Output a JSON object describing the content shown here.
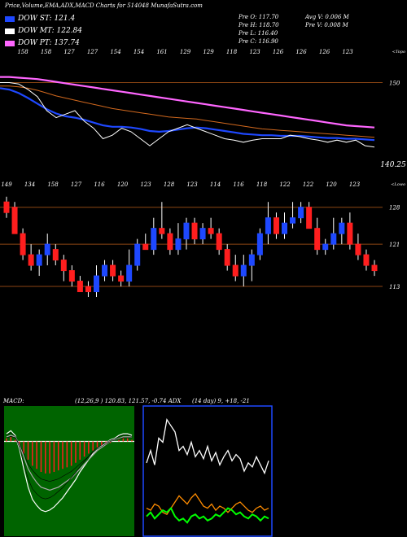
{
  "header": {
    "title": "Price,Volume,EMA,ADX,MACD Charts for 514048 MunafaSutra.com"
  },
  "legend": [
    {
      "label": "DOW ST: 121.4",
      "color": "#1e48ff"
    },
    {
      "label": "DOW MT: 122.84",
      "color": "#ffffff"
    },
    {
      "label": "DOW PT: 137.74",
      "color": "#ff66ff"
    }
  ],
  "ohlc": {
    "open": "Pre   O: 117.70",
    "high": "Pre   H: 118.70",
    "low": "Pre   L: 116.40",
    "close": "Pre   C: 116.90"
  },
  "volume_info": {
    "avg": "Avg V: 0.006   M",
    "pre": "Pre   V: 0.008   M"
  },
  "chart_data": [
    {
      "type": "line",
      "id": "ema-panel",
      "top_labels": [
        "158",
        "158",
        "127",
        "127",
        "154",
        "154",
        "161",
        "129",
        "129",
        "118",
        "123",
        "126",
        "126",
        "126",
        "123"
      ],
      "right_label": "150",
      "bottom_label": "140.25",
      "top_right": "<Topo",
      "ylim": [
        138,
        154
      ],
      "series": [
        {
          "color": "#ffffff",
          "values": [
            150,
            150,
            149.8,
            149,
            148,
            146,
            145,
            145.5,
            146,
            144.5,
            143.5,
            142,
            142.5,
            143.5,
            143,
            142,
            141,
            142,
            143,
            143.5,
            144,
            143.5,
            143,
            142.5,
            142,
            141.8,
            141.5,
            141.8,
            142,
            142,
            142,
            142.5,
            142.3,
            142,
            141.8,
            141.5,
            141.8,
            141.5,
            141.8,
            141,
            140.8
          ]
        },
        {
          "color": "#1e48ff",
          "values": [
            149.2,
            149,
            148.5,
            147.8,
            147,
            146.2,
            145.6,
            145.2,
            145,
            144.7,
            144.3,
            143.9,
            143.7,
            143.7,
            143.6,
            143.4,
            143.1,
            143,
            143.1,
            143.3,
            143.5,
            143.6,
            143.5,
            143.3,
            143.1,
            142.9,
            142.7,
            142.6,
            142.5,
            142.5,
            142.4,
            142.4,
            142.4,
            142.3,
            142.2,
            142.1,
            142.1,
            142,
            142,
            141.9,
            141.8
          ]
        },
        {
          "color": "#ff66ff",
          "values": [
            150.8,
            150.8,
            150.7,
            150.6,
            150.5,
            150.3,
            150.1,
            149.9,
            149.7,
            149.5,
            149.3,
            149.1,
            148.9,
            148.7,
            148.5,
            148.3,
            148.1,
            147.9,
            147.7,
            147.5,
            147.3,
            147.1,
            146.9,
            146.7,
            146.5,
            146.3,
            146.1,
            145.9,
            145.7,
            145.5,
            145.3,
            145.1,
            144.9,
            144.7,
            144.5,
            144.3,
            144.1,
            143.9,
            143.8,
            143.7,
            143.6
          ]
        },
        {
          "color": "#d2691e",
          "values": [
            149.5,
            149.5,
            149.4,
            149.2,
            148.9,
            148.5,
            148.1,
            147.8,
            147.5,
            147.2,
            146.9,
            146.6,
            146.3,
            146.1,
            145.9,
            145.7,
            145.5,
            145.3,
            145.1,
            145,
            144.9,
            144.8,
            144.6,
            144.4,
            144.2,
            144,
            143.8,
            143.6,
            143.4,
            143.3,
            143.2,
            143.1,
            143,
            142.9,
            142.8,
            142.7,
            142.6,
            142.5,
            142.4,
            142.3,
            142.2
          ]
        }
      ]
    },
    {
      "type": "candlestick",
      "id": "price-panel",
      "top_labels": [
        "149",
        "134",
        "158",
        "127",
        "116",
        "120",
        "123",
        "128",
        "123",
        "114",
        "116",
        "118",
        "122",
        "122",
        "120",
        "123"
      ],
      "right_labels": [
        "128",
        "121",
        "113"
      ],
      "top_right": "<Lowo",
      "ylim": [
        109,
        131.5
      ],
      "candles": [
        [
          129,
          127,
          130,
          126
        ],
        [
          128,
          123,
          129,
          123
        ],
        [
          123,
          119,
          124,
          118
        ],
        [
          119,
          117,
          121,
          116
        ],
        [
          117,
          119,
          120,
          115
        ],
        [
          119,
          121,
          123,
          117
        ],
        [
          120,
          118,
          121,
          117
        ],
        [
          118,
          116,
          119,
          114
        ],
        [
          116,
          114,
          117,
          113
        ],
        [
          114,
          112,
          115,
          112
        ],
        [
          113,
          112,
          114,
          111
        ],
        [
          112,
          115,
          117,
          111
        ],
        [
          115,
          117,
          118,
          114
        ],
        [
          117,
          115,
          118,
          114
        ],
        [
          115,
          114,
          116,
          113
        ],
        [
          114,
          117,
          120,
          113
        ],
        [
          117,
          121,
          122,
          116
        ],
        [
          121,
          120,
          123,
          120
        ],
        [
          120,
          124,
          126,
          119
        ],
        [
          124,
          123,
          129,
          122
        ],
        [
          123,
          120,
          124,
          119
        ],
        [
          120,
          122,
          125,
          119
        ],
        [
          122,
          125,
          126,
          120
        ],
        [
          125,
          122,
          126,
          121
        ],
        [
          122,
          124,
          125,
          121
        ],
        [
          124,
          123,
          126,
          122
        ],
        [
          123,
          120,
          124,
          119
        ],
        [
          120,
          117,
          121,
          116
        ],
        [
          117,
          115,
          119,
          114
        ],
        [
          115,
          117,
          119,
          113
        ],
        [
          117,
          119,
          120,
          114
        ],
        [
          119,
          123,
          124,
          118
        ],
        [
          123,
          126,
          129,
          121
        ],
        [
          126,
          123,
          127,
          122
        ],
        [
          123,
          125,
          127,
          122
        ],
        [
          125,
          126,
          129,
          124
        ],
        [
          126,
          128,
          129,
          125
        ],
        [
          128,
          124,
          129,
          124
        ],
        [
          124,
          120,
          126,
          119
        ],
        [
          120,
          121,
          122,
          119
        ],
        [
          121,
          123,
          126,
          120
        ],
        [
          123,
          125,
          126,
          121
        ],
        [
          125,
          121,
          127,
          120
        ],
        [
          121,
          119,
          123,
          118
        ],
        [
          119,
          117,
          120,
          116
        ],
        [
          117,
          116,
          118,
          115
        ]
      ]
    },
    {
      "type": "line",
      "id": "macd-panel",
      "label": "MACD:",
      "values_text": "(12,26,9 ) 120.83,  121.57, -0.74 ADX",
      "ylim": [
        -6,
        2
      ],
      "histogram": [
        0.2,
        0.3,
        0.1,
        -0.3,
        -0.8,
        -1.2,
        -1.6,
        -1.8,
        -2.0,
        -2.1,
        -2.1,
        -2.0,
        -1.9,
        -1.8,
        -1.7,
        -1.6,
        -1.4,
        -1.2,
        -1.0,
        -0.8,
        -0.6,
        -0.4,
        -0.3,
        -0.2,
        -0.1,
        0.0,
        0.1,
        0.2,
        0.2,
        0.1
      ],
      "series": [
        {
          "color": "#ffffff",
          "values": [
            0.5,
            0.7,
            0.4,
            -0.5,
            -1.8,
            -3.0,
            -3.8,
            -4.2,
            -4.5,
            -4.6,
            -4.5,
            -4.3,
            -4.0,
            -3.7,
            -3.3,
            -2.9,
            -2.5,
            -2.0,
            -1.6,
            -1.2,
            -0.8,
            -0.5,
            -0.3,
            -0.1,
            0.1,
            0.2,
            0.4,
            0.5,
            0.5,
            0.4
          ]
        },
        {
          "color": "#aaaaaa",
          "values": [
            0.3,
            0.4,
            0.3,
            -0.2,
            -1.0,
            -1.8,
            -2.3,
            -2.7,
            -3.0,
            -3.1,
            -3.2,
            -3.1,
            -3.0,
            -2.8,
            -2.6,
            -2.4,
            -2.1,
            -1.8,
            -1.5,
            -1.2,
            -0.9,
            -0.6,
            -0.4,
            -0.2,
            0.0,
            0.1,
            0.2,
            0.3,
            0.3,
            0.3
          ]
        }
      ]
    },
    {
      "type": "line",
      "id": "adx-panel",
      "values_text": "(14  day) 9, +18, -21",
      "ylim": [
        0,
        60
      ],
      "series": [
        {
          "color": "#ffffff",
          "values": [
            34,
            40,
            33,
            46,
            44,
            55,
            52,
            49,
            40,
            42,
            38,
            44,
            37,
            40,
            36,
            42,
            35,
            39,
            33,
            37,
            40,
            35,
            38,
            36,
            30,
            34,
            32,
            37,
            33,
            29,
            35
          ]
        },
        {
          "color": "#00ff00",
          "values": [
            8,
            10,
            7,
            9,
            11,
            10,
            12,
            8,
            6,
            7,
            5,
            8,
            9,
            7,
            8,
            6,
            7,
            9,
            8,
            10,
            12,
            11,
            9,
            10,
            8,
            7,
            9,
            8,
            6,
            8,
            7
          ]
        },
        {
          "color": "#ff8c00",
          "values": [
            12,
            11,
            14,
            13,
            10,
            9,
            12,
            15,
            18,
            16,
            14,
            17,
            19,
            16,
            13,
            12,
            14,
            11,
            13,
            12,
            10,
            12,
            14,
            15,
            13,
            11,
            10,
            12,
            13,
            11,
            12
          ]
        }
      ]
    }
  ]
}
